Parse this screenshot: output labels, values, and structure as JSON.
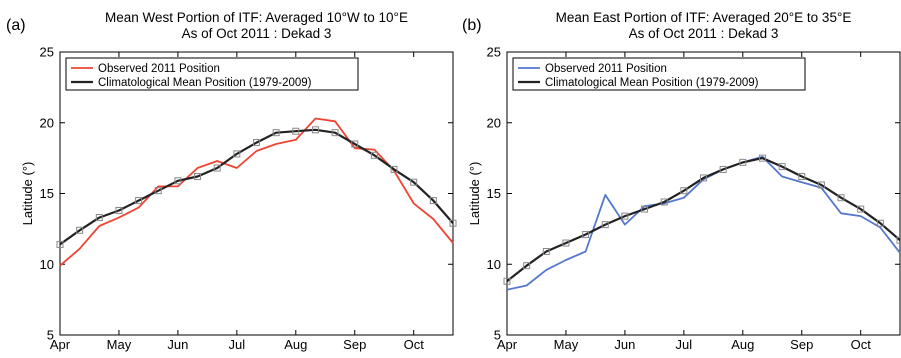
{
  "chart_data": [
    {
      "type": "line",
      "panel_label": "(a)",
      "title": [
        "Mean West Portion of ITF: Averaged 10°W to 10°E",
        "As of Oct 2011 : Dekad 3"
      ],
      "xlabel": "",
      "ylabel": "Latitude (°)",
      "ylim": [
        5,
        25
      ],
      "yticks": [
        "5",
        "10",
        "15",
        "20",
        "25"
      ],
      "xtick_labels": [
        "Apr",
        "May",
        "Jun",
        "Jul",
        "Aug",
        "Sep",
        "Oct"
      ],
      "xtick_dekads": [
        1,
        4,
        7,
        10,
        13,
        16,
        19
      ],
      "xlim_dekads": [
        1,
        21
      ],
      "legend_position": "top-left",
      "series": [
        {
          "name": "Observed 2011 Position",
          "color": "#ee4433",
          "dekad": [
            1,
            2,
            3,
            4,
            5,
            6,
            7,
            8,
            9,
            10,
            11,
            12,
            13,
            14,
            15,
            16,
            17,
            18,
            19,
            20,
            21
          ],
          "values": [
            9.9,
            11.1,
            12.7,
            13.3,
            14.0,
            15.5,
            15.5,
            16.8,
            17.3,
            16.8,
            18.0,
            18.5,
            18.8,
            20.3,
            20.1,
            18.2,
            18.1,
            16.6,
            14.3,
            13.2,
            11.5
          ]
        },
        {
          "name": "Climatological Mean Position (1979-2009)",
          "color": "#222222",
          "marker": "square",
          "dekad": [
            1,
            2,
            3,
            4,
            5,
            6,
            7,
            8,
            9,
            10,
            11,
            12,
            13,
            14,
            15,
            16,
            17,
            18,
            19,
            20,
            21
          ],
          "values": [
            11.4,
            12.4,
            13.3,
            13.8,
            14.5,
            15.2,
            15.9,
            16.2,
            16.8,
            17.8,
            18.6,
            19.3,
            19.4,
            19.5,
            19.3,
            18.5,
            17.7,
            16.7,
            15.8,
            14.5,
            12.9
          ]
        }
      ]
    },
    {
      "type": "line",
      "panel_label": "(b)",
      "title": [
        "Mean East Portion of ITF: Averaged 20°E to 35°E",
        "As of Oct 2011 : Dekad 3"
      ],
      "xlabel": "",
      "ylabel": "Latitude (°)",
      "ylim": [
        5,
        25
      ],
      "yticks": [
        "5",
        "10",
        "15",
        "20",
        "25"
      ],
      "xtick_labels": [
        "Apr",
        "May",
        "Jun",
        "Jul",
        "Aug",
        "Sep",
        "Oct"
      ],
      "xtick_dekads": [
        1,
        4,
        7,
        10,
        13,
        16,
        19
      ],
      "xlim_dekads": [
        1,
        21
      ],
      "legend_position": "top-left",
      "series": [
        {
          "name": "Observed 2011 Position",
          "color": "#5577cc",
          "dekad": [
            1,
            2,
            3,
            4,
            5,
            6,
            7,
            8,
            9,
            10,
            11,
            12,
            13,
            14,
            15,
            16,
            17,
            18,
            19,
            20,
            21
          ],
          "values": [
            8.2,
            8.5,
            9.6,
            10.3,
            10.9,
            14.9,
            12.8,
            14.1,
            14.3,
            14.7,
            16.0,
            16.7,
            17.2,
            17.6,
            16.2,
            15.8,
            15.4,
            13.6,
            13.4,
            12.6,
            10.8
          ]
        },
        {
          "name": "Climatological Mean Position (1979-2009)",
          "color": "#222222",
          "marker": "square",
          "dekad": [
            1,
            2,
            3,
            4,
            5,
            6,
            7,
            8,
            9,
            10,
            11,
            12,
            13,
            14,
            15,
            16,
            17,
            18,
            19,
            20,
            21
          ],
          "values": [
            8.8,
            9.9,
            10.9,
            11.5,
            12.1,
            12.8,
            13.4,
            13.9,
            14.4,
            15.2,
            16.1,
            16.7,
            17.2,
            17.5,
            16.9,
            16.2,
            15.6,
            14.7,
            13.9,
            12.9,
            11.7
          ]
        }
      ]
    }
  ]
}
